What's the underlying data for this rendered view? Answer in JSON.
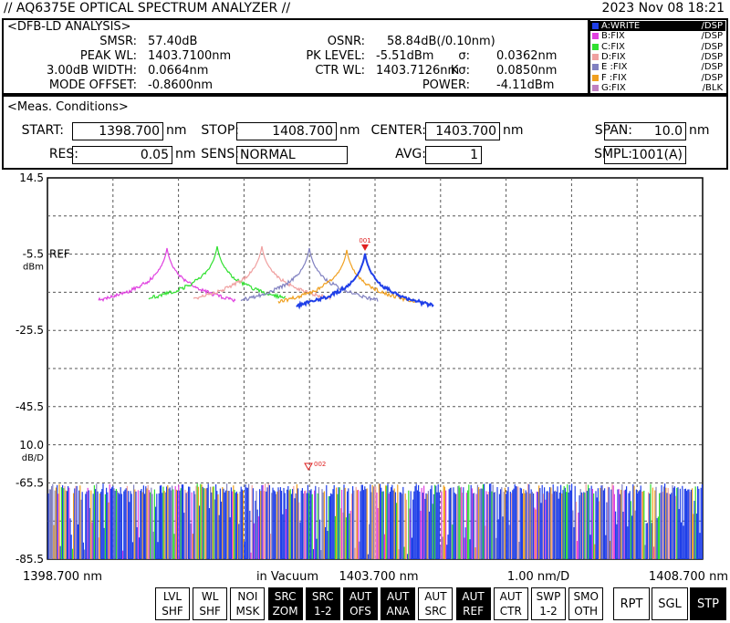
{
  "header": {
    "title": "// AQ6375E OPTICAL SPECTRUM ANALYZER //",
    "date": "2023 Nov 08 18:21"
  },
  "analysis": {
    "title": "<DFB-LD ANALYSIS>",
    "items": [
      {
        "label": "SMSR:",
        "value": "57.40dB"
      },
      {
        "label": "OSNR:",
        "value": "58.84dB(/0.10nm)"
      },
      {
        "label": "PEAK WL:",
        "value": "1403.7100nm"
      },
      {
        "label": "PK LEVEL:",
        "value": "-5.51dBm"
      },
      {
        "label": "σ:",
        "value": "0.0362nm"
      },
      {
        "label": "3.00dB WIDTH:",
        "value": "0.0664nm"
      },
      {
        "label": "CTR WL:",
        "value": "1403.7126nm"
      },
      {
        "label": "Kσ:",
        "value": "0.0850nm"
      },
      {
        "label": "MODE OFFSET:",
        "value": "-0.8600nm"
      },
      {
        "label": "POWER:",
        "value": "-4.11dBm"
      }
    ]
  },
  "traces": [
    {
      "label": "A:WRITE",
      "mode": "/DSP",
      "color": "#1f3fe8",
      "active": true
    },
    {
      "label": "B:FIX",
      "mode": "/DSP",
      "color": "#e040e0",
      "active": false
    },
    {
      "label": "C:FIX",
      "mode": "/DSP",
      "color": "#30e030",
      "active": false
    },
    {
      "label": "D:FIX",
      "mode": "/DSP",
      "color": "#f0a0a0",
      "active": false
    },
    {
      "label": "E :FIX",
      "mode": "/DSP",
      "color": "#8080c0",
      "active": false
    },
    {
      "label": "F :FIX",
      "mode": "/DSP",
      "color": "#f0a020",
      "active": false
    },
    {
      "label": "G:FIX",
      "mode": "/BLK",
      "color": "#c080c0",
      "active": false
    }
  ],
  "conditions": {
    "title": "<Meas. Conditions>",
    "fields": [
      {
        "label": "START:",
        "value": "1398.700",
        "unit": "nm"
      },
      {
        "label": "STOP:",
        "value": "1408.700",
        "unit": "nm"
      },
      {
        "label": "CENTER:",
        "value": "1403.700",
        "unit": "nm"
      },
      {
        "label": "SPAN:",
        "value": "10.0",
        "unit": "nm"
      },
      {
        "label": "RES:",
        "value": "0.05",
        "unit": "nm"
      },
      {
        "label": "SENS:",
        "value": "NORMAL"
      },
      {
        "label": "AVG:",
        "value": "1"
      },
      {
        "label": "SMPL:",
        "value": "1001(A)"
      }
    ]
  },
  "plot": {
    "y_labels": [
      "14.5",
      "-5.5",
      "-25.5",
      "-45.5",
      "-65.5",
      "-85.5"
    ],
    "ref": "REF",
    "unit": "dBm",
    "scale": "10.0",
    "scale_unit": "dB/D",
    "x_labels": [
      "1398.700 nm",
      "in Vacuum",
      "1403.700 nm",
      "1.00 nm/D",
      "1408.700 nm"
    ],
    "markers": [
      "001",
      "002"
    ]
  },
  "softkeys": [
    {
      "lines": [
        "LVL",
        "SHF"
      ],
      "active": false
    },
    {
      "lines": [
        "WL",
        "SHF"
      ],
      "active": false
    },
    {
      "lines": [
        "NOI",
        "MSK"
      ],
      "active": false
    },
    {
      "lines": [
        "SRC",
        "ZOM"
      ],
      "active": true
    },
    {
      "lines": [
        "SRC",
        "1-2"
      ],
      "active": true
    },
    {
      "lines": [
        "AUT",
        "OFS"
      ],
      "active": true
    },
    {
      "lines": [
        "AUT",
        "ANA"
      ],
      "active": true
    },
    {
      "lines": [
        "AUT",
        "SRC"
      ],
      "active": false
    },
    {
      "lines": [
        "AUT",
        "REF"
      ],
      "active": true
    },
    {
      "lines": [
        "AUT",
        "CTR"
      ],
      "active": false
    },
    {
      "lines": [
        "SWP",
        "1-2"
      ],
      "active": false
    },
    {
      "lines": [
        "SMO",
        "OTH"
      ],
      "active": false
    }
  ],
  "run_keys": [
    {
      "label": "RPT",
      "active": false
    },
    {
      "label": "SGL",
      "active": false
    },
    {
      "label": "STP",
      "active": true
    }
  ]
}
